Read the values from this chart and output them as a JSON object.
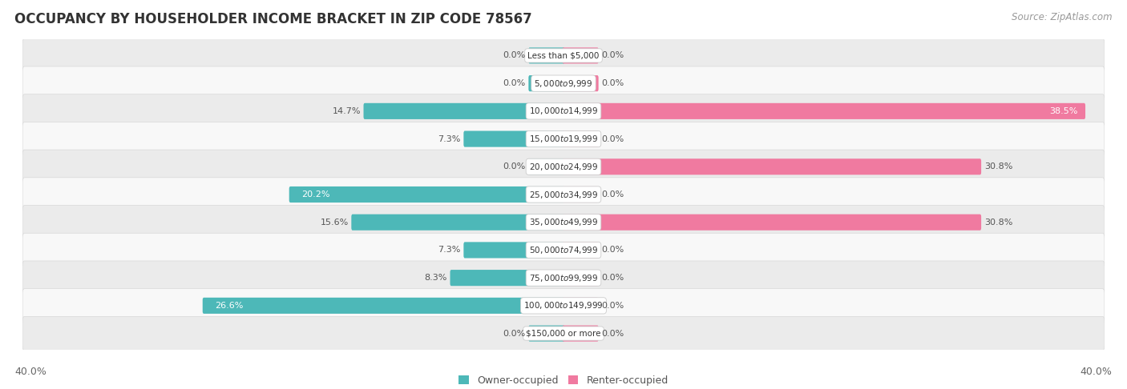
{
  "title": "OCCUPANCY BY HOUSEHOLDER INCOME BRACKET IN ZIP CODE 78567",
  "source": "Source: ZipAtlas.com",
  "categories": [
    "Less than $5,000",
    "$5,000 to $9,999",
    "$10,000 to $14,999",
    "$15,000 to $19,999",
    "$20,000 to $24,999",
    "$25,000 to $34,999",
    "$35,000 to $49,999",
    "$50,000 to $74,999",
    "$75,000 to $99,999",
    "$100,000 to $149,999",
    "$150,000 or more"
  ],
  "owner_values": [
    0.0,
    0.0,
    14.7,
    7.3,
    0.0,
    20.2,
    15.6,
    7.3,
    8.3,
    26.6,
    0.0
  ],
  "renter_values": [
    0.0,
    0.0,
    38.5,
    0.0,
    30.8,
    0.0,
    30.8,
    0.0,
    0.0,
    0.0,
    0.0
  ],
  "owner_color": "#4db8b8",
  "renter_color": "#f07aa0",
  "row_bg_color": "#ebebeb",
  "row_alt_bg_color": "#f8f8f8",
  "max_val": 40.0,
  "title_fontsize": 12,
  "source_fontsize": 8.5,
  "axis_label_fontsize": 9,
  "bar_label_fontsize": 8,
  "category_fontsize": 7.5,
  "legend_fontsize": 9,
  "background_color": "#ffffff",
  "stub_owner": 2.5,
  "stub_renter": 2.5
}
